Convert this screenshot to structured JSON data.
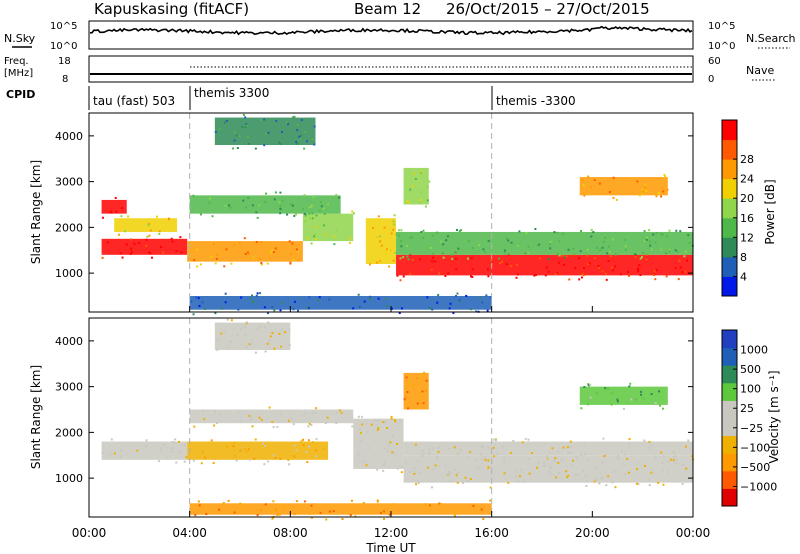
{
  "header": {
    "station": "Kapuskasing (fitACF)",
    "beam": "Beam 12",
    "dates": "26/Oct/2015 – 27/Oct/2015"
  },
  "strips": {
    "nsky": {
      "label": "N.Sky",
      "tick_top": "10^5",
      "tick_bottom": "10^0"
    },
    "nsearch": {
      "label": "N.Search",
      "tick_top": "10^5",
      "tick_bottom": "10^0"
    },
    "freq": {
      "label_1": "Freq.",
      "label_2": "[MHz]",
      "tick_top": "18",
      "tick_bottom": "8"
    },
    "nave": {
      "label": "Nave",
      "tick_top": "60",
      "tick_bottom": "0"
    },
    "cpid": {
      "label": "CPID",
      "segments": [
        {
          "label": "tau (fast) 503",
          "start_hour": 0
        },
        {
          "label": "themis 3300",
          "start_hour": 4
        },
        {
          "label": "themis -3300",
          "start_hour": 16
        }
      ]
    }
  },
  "colors": {
    "power": [
      "#0018e8",
      "#1f5fb8",
      "#2e8b57",
      "#4fb84a",
      "#8fd64a",
      "#f0d000",
      "#ff9900",
      "#ff5a00",
      "#ff0000"
    ],
    "velocity": [
      "#e00000",
      "#ff5a00",
      "#ff9900",
      "#f0b000",
      "#c8c8c0",
      "#c8c8c0",
      "#5dc83c",
      "#2e8b57",
      "#1f5fb8",
      "#2040c0"
    ]
  },
  "chart_data": [
    {
      "type": "heatmap",
      "panel": "power",
      "ylabel": "Slant Range [km]",
      "ylim": [
        150,
        4500
      ],
      "yticks": [
        1000,
        2000,
        3000,
        4000
      ],
      "xlim": [
        0,
        24
      ],
      "colorbar_label": "Power [dB]",
      "colorbar_ticks": [
        "4",
        "8",
        "12",
        "16",
        "20",
        "24",
        "28"
      ],
      "bands": [
        {
          "x": [
            0.5,
            3.9
          ],
          "y": [
            1400,
            1750
          ],
          "level": 8
        },
        {
          "x": [
            3.9,
            8.5
          ],
          "y": [
            1250,
            1700
          ],
          "level": 6
        },
        {
          "x": [
            8.5,
            10.5
          ],
          "y": [
            1700,
            2300
          ],
          "level": 4
        },
        {
          "x": [
            11.0,
            12.2
          ],
          "y": [
            1200,
            2200
          ],
          "level": 5
        },
        {
          "x": [
            12.2,
            24.0
          ],
          "y": [
            950,
            1400
          ],
          "level": 8
        },
        {
          "x": [
            12.2,
            24.0
          ],
          "y": [
            1400,
            1900
          ],
          "level": 3
        },
        {
          "x": [
            19.5,
            23.0
          ],
          "y": [
            2700,
            3100
          ],
          "level": 6
        },
        {
          "x": [
            0.5,
            1.5
          ],
          "y": [
            2300,
            2600
          ],
          "level": 8
        },
        {
          "x": [
            1.0,
            3.5
          ],
          "y": [
            1900,
            2200
          ],
          "level": 5
        },
        {
          "x": [
            4.0,
            10.0
          ],
          "y": [
            2300,
            2700
          ],
          "level": 3
        },
        {
          "x": [
            4.0,
            16.0
          ],
          "y": [
            200,
            500
          ],
          "level": 1
        },
        {
          "x": [
            5.0,
            9.0
          ],
          "y": [
            3800,
            4400
          ],
          "level": 2
        },
        {
          "x": [
            12.5,
            13.5
          ],
          "y": [
            2500,
            3300
          ],
          "level": 4
        }
      ]
    },
    {
      "type": "heatmap",
      "panel": "velocity",
      "ylabel": "Slant Range [km]",
      "xlabel": "Time UT",
      "ylim": [
        150,
        4500
      ],
      "yticks": [
        1000,
        2000,
        3000,
        4000
      ],
      "xlim": [
        0,
        24
      ],
      "xticks": [
        "00:00",
        "04:00",
        "08:00",
        "12:00",
        "16:00",
        "20:00",
        "00:00"
      ],
      "colorbar_label": "Velocity [m s⁻¹]",
      "colorbar_ticks": [
        "1000",
        "500",
        "100",
        "25",
        "−25",
        "−100",
        "−500",
        "−1000"
      ],
      "bands": [
        {
          "x": [
            0.5,
            3.9
          ],
          "y": [
            1400,
            1800
          ],
          "level": 4
        },
        {
          "x": [
            3.9,
            9.5
          ],
          "y": [
            1400,
            1800
          ],
          "level": 3
        },
        {
          "x": [
            4.0,
            10.5
          ],
          "y": [
            2200,
            2500
          ],
          "level": 4
        },
        {
          "x": [
            10.5,
            12.5
          ],
          "y": [
            1200,
            2300
          ],
          "level": 4
        },
        {
          "x": [
            12.5,
            24.0
          ],
          "y": [
            900,
            1500
          ],
          "level": 4
        },
        {
          "x": [
            12.5,
            24.0
          ],
          "y": [
            1500,
            1800
          ],
          "level": 4
        },
        {
          "x": [
            19.5,
            23.0
          ],
          "y": [
            2600,
            3000
          ],
          "level": 6
        },
        {
          "x": [
            4.0,
            16.0
          ],
          "y": [
            200,
            450
          ],
          "level": 2
        },
        {
          "x": [
            5.0,
            8.0
          ],
          "y": [
            3800,
            4400
          ],
          "level": 4
        },
        {
          "x": [
            12.5,
            13.5
          ],
          "y": [
            2500,
            3300
          ],
          "level": 2
        }
      ]
    }
  ],
  "axes": {
    "xlabel": "Time UT",
    "ylabel": "Slant Range [km]",
    "xticks": [
      "00:00",
      "04:00",
      "08:00",
      "12:00",
      "16:00",
      "20:00",
      "00:00"
    ]
  }
}
